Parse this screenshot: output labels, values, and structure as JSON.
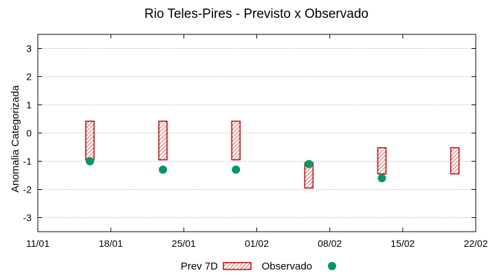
{
  "chart_data": {
    "type": "scatter",
    "title": "Rio Teles-Pires - Previsto x Observado",
    "ylabel": "Anomalia Categorizada",
    "xlabel": "",
    "x_ticks": [
      "11/01",
      "18/01",
      "25/01",
      "01/02",
      "08/02",
      "15/02",
      "22/02"
    ],
    "x_range_days": [
      0,
      42
    ],
    "y_ticks": [
      3,
      2,
      1,
      0,
      -1,
      -2,
      -3
    ],
    "ylim": [
      -3.5,
      3.5
    ],
    "grid": true,
    "legend_position": "bottom",
    "series": [
      {
        "name": "Prev 7D",
        "kind": "range",
        "color": "#cc0000",
        "points": [
          {
            "x": "18/01",
            "low": -0.95,
            "high": 0.42
          },
          {
            "x": "25/01",
            "low": -0.95,
            "high": 0.42
          },
          {
            "x": "01/02",
            "low": -0.95,
            "high": 0.42
          },
          {
            "x": "08/02",
            "low": -1.95,
            "high": -1.05
          },
          {
            "x": "15/02",
            "low": -1.45,
            "high": -0.52
          },
          {
            "x": "22/02",
            "low": -1.45,
            "high": -0.52
          }
        ]
      },
      {
        "name": "Observado",
        "kind": "point",
        "color": "#009966",
        "points": [
          {
            "x": "18/01",
            "y": -1.0
          },
          {
            "x": "25/01",
            "y": -1.3
          },
          {
            "x": "01/02",
            "y": -1.3
          },
          {
            "x": "08/02",
            "y": -1.1
          },
          {
            "x": "15/02",
            "y": -1.6
          }
        ]
      }
    ]
  }
}
